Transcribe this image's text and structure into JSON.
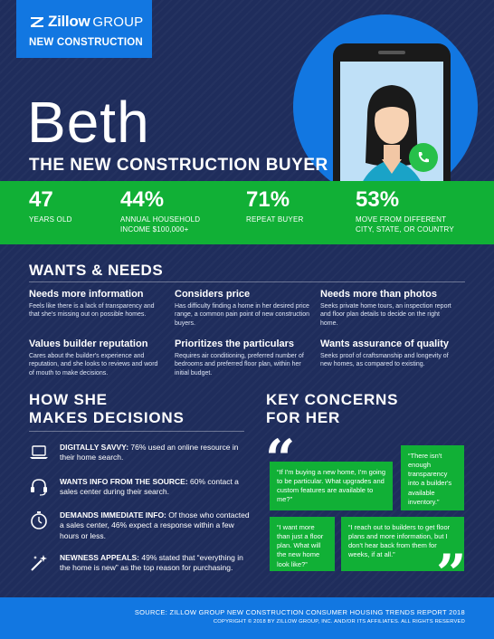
{
  "brand": {
    "name": "Zillow",
    "group": "GROUP",
    "division": "NEW CONSTRUCTION"
  },
  "persona": {
    "name": "Beth",
    "subtitle": "THE NEW CONSTRUCTION BUYER"
  },
  "stats": [
    {
      "value": "47",
      "label": "YEARS OLD"
    },
    {
      "value": "44%",
      "label": "ANNUAL HOUSEHOLD INCOME $100,000+"
    },
    {
      "value": "71%",
      "label": "REPEAT BUYER"
    },
    {
      "value": "53%",
      "label": "MOVE FROM DIFFERENT CITY, STATE, OR COUNTRY"
    }
  ],
  "wants_needs": {
    "heading": "WANTS & NEEDS",
    "items": [
      {
        "title": "Needs more information",
        "desc": "Feels like there is a lack of transparency and that she's missing out on possible homes."
      },
      {
        "title": "Considers price",
        "desc": "Has difficulty finding a home in her desired price range, a common pain point of new construction buyers."
      },
      {
        "title": "Needs more than photos",
        "desc": "Seeks private home tours, an inspection report and floor plan details to decide on the right home."
      },
      {
        "title": "Values builder reputation",
        "desc": "Cares about the builder's experience and reputation, and she looks to reviews and word of mouth to make decisions."
      },
      {
        "title": "Prioritizes the particulars",
        "desc": "Requires air conditioning, preferred number of bedrooms and preferred floor plan, within her initial budget."
      },
      {
        "title": "Wants assurance of quality",
        "desc": "Seeks proof of craftsmanship and longevity of new homes, as compared to existing."
      }
    ]
  },
  "decisions": {
    "heading_line1": "HOW SHE",
    "heading_line2": "MAKES DECISIONS",
    "items": [
      {
        "icon": "laptop-icon",
        "bold": "DIGITALLY SAVVY:",
        "text": " 76% used an online resource in their home search."
      },
      {
        "icon": "headset-icon",
        "bold": "WANTS INFO FROM THE SOURCE:",
        "text": " 60% contact a sales center during their search."
      },
      {
        "icon": "stopwatch-icon",
        "bold": "DEMANDS IMMEDIATE INFO:",
        "text": " Of those who contacted a sales center, 46% expect a response within a few hours or less."
      },
      {
        "icon": "sparkle-icon",
        "bold": "NEWNESS APPEALS:",
        "text": " 49% stated that “everything in the home is new” as the top reason for purchasing."
      }
    ]
  },
  "concerns": {
    "heading_line1": "KEY CONCERNS",
    "heading_line2": "FOR HER",
    "quotes": [
      "“If I'm buying a new home, I'm going to be particular. What upgrades and custom features are available to me?”",
      "“There isn't enough transparency into a builder's available inventory.”",
      "“I want more than just a floor plan. What will the new home look like?”",
      "“I reach out to builders to get floor plans and more information, but I don't hear back from them for weeks, if at all.”"
    ]
  },
  "footer": {
    "source": "SOURCE: ZILLOW GROUP NEW CONSTRUCTION CONSUMER HOUSING TRENDS REPORT 2018",
    "copyright": "COPYRIGHT © 2018 BY ZILLOW GROUP, INC. AND/OR ITS AFFILIATES. ALL RIGHTS RESERVED"
  },
  "colors": {
    "navy": "#1f2d5c",
    "blue": "#1277e1",
    "green": "#11b036"
  }
}
